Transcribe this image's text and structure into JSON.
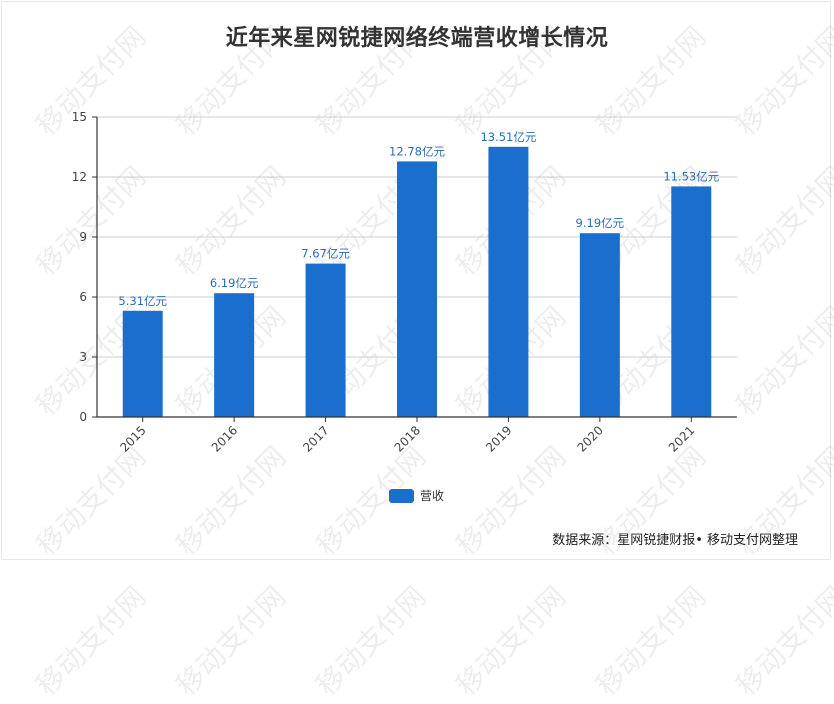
{
  "title": "近年来星网锐捷网络终端营收增长情况",
  "watermark": "移动支付网",
  "colors": {
    "bar": "#1a6fce",
    "label": "#2b6cb6",
    "grid": "#cccccc",
    "axis": "#333333"
  },
  "legend": {
    "label": "营收"
  },
  "source": "数据来源：星网锐捷财报• 移动支付网整理",
  "chart_data": {
    "type": "bar",
    "title": "近年来星网锐捷网络终端营收增长情况",
    "categories": [
      "2015",
      "2016",
      "2017",
      "2018",
      "2019",
      "2020",
      "2021"
    ],
    "series": [
      {
        "name": "营收",
        "values": [
          5.31,
          6.19,
          7.67,
          12.78,
          13.51,
          9.19,
          11.53
        ]
      }
    ],
    "data_labels": [
      "5.31亿元",
      "6.19亿元",
      "7.67亿元",
      "12.78亿元",
      "13.51亿元",
      "9.19亿元",
      "11.53亿元"
    ],
    "xlabel": "",
    "ylabel": "",
    "yticks": [
      0,
      3,
      6,
      9,
      12,
      15
    ],
    "ylim": [
      0,
      15
    ],
    "grid": true,
    "legend_position": "bottom",
    "unit": "亿元"
  }
}
